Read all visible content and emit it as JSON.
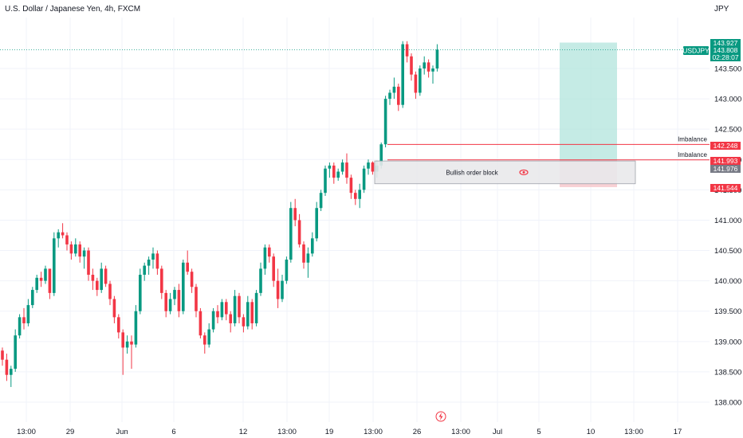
{
  "header": {
    "title": "U.S. Dollar / Japanese Yen, 4h, FXCM",
    "currency": "JPY"
  },
  "colors": {
    "up": "#089981",
    "down": "#f23645",
    "grid": "#f0f3fa",
    "target_zone": "#b2e4dc",
    "stop_zone": "#f6c6ca",
    "order_block": "#e9e9ec"
  },
  "chart_data": {
    "type": "candlestick",
    "title": "U.S. Dollar / Japanese Yen, 4h, FXCM",
    "ylim": [
      137.78,
      144.3
    ],
    "y_ticks": [
      138.0,
      138.5,
      139.0,
      139.5,
      140.0,
      140.5,
      141.0,
      141.5,
      142.0,
      142.5,
      143.0,
      143.5
    ],
    "y_tick_labels": [
      "138.000",
      "138.500",
      "139.000",
      "139.500",
      "140.000",
      "140.500",
      "141.000",
      "141.500",
      "142.000",
      "142.500",
      "143.000",
      "143.500"
    ],
    "x_tick_labels": [
      "13:00",
      "29",
      "Jun",
      "6",
      "12",
      "13:00",
      "19",
      "13:00",
      "26",
      "13:00",
      "Jul",
      "5",
      "10",
      "13:00",
      "17"
    ],
    "series": [
      {
        "name": "USDJPY",
        "last_price": 143.808,
        "ohlc": [
          [
            138.85,
            138.9,
            138.6,
            138.7
          ],
          [
            138.7,
            138.8,
            138.35,
            138.45
          ],
          [
            138.45,
            138.6,
            138.25,
            138.55
          ],
          [
            138.55,
            139.2,
            138.5,
            139.1
          ],
          [
            139.1,
            139.45,
            139.05,
            139.4
          ],
          [
            139.4,
            139.55,
            139.2,
            139.3
          ],
          [
            139.3,
            139.7,
            139.25,
            139.6
          ],
          [
            139.6,
            139.9,
            139.55,
            139.85
          ],
          [
            139.85,
            140.1,
            139.8,
            140.05
          ],
          [
            140.05,
            140.15,
            139.9,
            140.0
          ],
          [
            140.0,
            140.25,
            139.95,
            140.2
          ],
          [
            140.2,
            140.15,
            139.7,
            139.8
          ],
          [
            139.8,
            140.8,
            139.75,
            140.7
          ],
          [
            140.7,
            140.85,
            140.55,
            140.8
          ],
          [
            140.8,
            140.95,
            140.7,
            140.75
          ],
          [
            140.75,
            140.8,
            140.5,
            140.6
          ],
          [
            140.6,
            140.65,
            140.35,
            140.45
          ],
          [
            140.45,
            140.7,
            140.4,
            140.6
          ],
          [
            140.6,
            140.65,
            140.3,
            140.4
          ],
          [
            140.4,
            140.55,
            140.2,
            140.5
          ],
          [
            140.5,
            140.55,
            140.0,
            140.1
          ],
          [
            140.1,
            140.2,
            139.85,
            140.0
          ],
          [
            140.0,
            140.05,
            139.75,
            139.85
          ],
          [
            139.85,
            140.3,
            139.8,
            140.2
          ],
          [
            140.2,
            140.25,
            139.9,
            139.95
          ],
          [
            139.95,
            140.0,
            139.6,
            139.7
          ],
          [
            139.7,
            139.75,
            139.3,
            139.4
          ],
          [
            139.4,
            139.45,
            139.05,
            139.15
          ],
          [
            139.15,
            139.2,
            138.45,
            138.9
          ],
          [
            138.9,
            139.1,
            138.8,
            139.0
          ],
          [
            139.0,
            139.1,
            138.55,
            138.95
          ],
          [
            138.95,
            139.6,
            138.9,
            139.5
          ],
          [
            139.5,
            140.2,
            139.45,
            140.1
          ],
          [
            140.1,
            140.3,
            140.0,
            140.25
          ],
          [
            140.25,
            140.4,
            140.1,
            140.35
          ],
          [
            140.35,
            140.55,
            140.2,
            140.45
          ],
          [
            140.45,
            140.5,
            140.1,
            140.2
          ],
          [
            140.2,
            140.25,
            139.7,
            139.8
          ],
          [
            139.8,
            139.85,
            139.4,
            139.5
          ],
          [
            139.5,
            139.8,
            139.45,
            139.7
          ],
          [
            139.7,
            139.9,
            139.6,
            139.85
          ],
          [
            139.85,
            139.95,
            139.4,
            139.5
          ],
          [
            139.5,
            140.35,
            139.45,
            140.3
          ],
          [
            140.3,
            140.5,
            140.1,
            140.15
          ],
          [
            140.15,
            140.2,
            139.8,
            139.9
          ],
          [
            139.9,
            139.95,
            139.4,
            139.5
          ],
          [
            139.5,
            139.55,
            139.05,
            139.1
          ],
          [
            139.1,
            139.15,
            138.8,
            138.95
          ],
          [
            138.95,
            139.3,
            138.9,
            139.2
          ],
          [
            139.2,
            139.55,
            139.15,
            139.5
          ],
          [
            139.5,
            139.6,
            139.3,
            139.4
          ],
          [
            139.4,
            139.7,
            139.35,
            139.65
          ],
          [
            139.65,
            139.7,
            139.35,
            139.45
          ],
          [
            139.45,
            139.5,
            139.15,
            139.3
          ],
          [
            139.3,
            139.85,
            139.25,
            139.75
          ],
          [
            139.75,
            139.8,
            139.3,
            139.4
          ],
          [
            139.4,
            139.45,
            139.15,
            139.25
          ],
          [
            139.25,
            139.75,
            139.2,
            139.65
          ],
          [
            139.65,
            139.7,
            139.2,
            139.3
          ],
          [
            139.3,
            139.85,
            139.25,
            139.8
          ],
          [
            139.8,
            140.3,
            139.75,
            140.2
          ],
          [
            140.2,
            140.6,
            140.1,
            140.55
          ],
          [
            140.55,
            140.6,
            140.3,
            140.4
          ],
          [
            140.4,
            140.45,
            139.9,
            140.0
          ],
          [
            140.0,
            140.2,
            139.55,
            139.7
          ],
          [
            139.7,
            140.1,
            139.65,
            140.0
          ],
          [
            140.0,
            140.4,
            139.95,
            140.35
          ],
          [
            140.35,
            141.3,
            140.3,
            141.2
          ],
          [
            141.2,
            141.35,
            140.9,
            141.0
          ],
          [
            141.0,
            141.1,
            140.55,
            140.6
          ],
          [
            140.6,
            140.65,
            140.2,
            140.3
          ],
          [
            140.3,
            140.55,
            140.05,
            140.45
          ],
          [
            140.45,
            140.8,
            140.4,
            140.7
          ],
          [
            140.7,
            141.3,
            140.65,
            141.2
          ],
          [
            141.2,
            141.5,
            141.15,
            141.45
          ],
          [
            141.45,
            141.9,
            141.4,
            141.85
          ],
          [
            141.85,
            141.95,
            141.7,
            141.9
          ],
          [
            141.9,
            141.95,
            141.6,
            141.7
          ],
          [
            141.7,
            141.85,
            141.65,
            141.8
          ],
          [
            141.8,
            142.0,
            141.75,
            141.95
          ],
          [
            141.95,
            142.1,
            141.6,
            141.7
          ],
          [
            141.7,
            141.75,
            141.35,
            141.45
          ],
          [
            141.45,
            141.5,
            141.25,
            141.35
          ],
          [
            141.35,
            141.6,
            141.2,
            141.5
          ],
          [
            141.5,
            141.9,
            141.45,
            141.85
          ],
          [
            141.85,
            142.0,
            141.75,
            141.95
          ],
          [
            141.95,
            141.97,
            141.75,
            141.8
          ],
          [
            141.8,
            141.98,
            141.7,
            141.9
          ],
          [
            141.9,
            142.28,
            141.85,
            142.25
          ],
          [
            142.25,
            143.05,
            142.2,
            143.0
          ],
          [
            143.0,
            143.15,
            142.9,
            143.1
          ],
          [
            143.1,
            143.35,
            143.0,
            143.2
          ],
          [
            143.2,
            143.25,
            142.8,
            142.9
          ],
          [
            142.9,
            143.95,
            142.85,
            143.9
          ],
          [
            143.9,
            143.95,
            143.6,
            143.7
          ],
          [
            143.7,
            143.75,
            143.3,
            143.4
          ],
          [
            143.4,
            143.45,
            143.0,
            143.1
          ],
          [
            143.1,
            143.55,
            143.05,
            143.5
          ],
          [
            143.5,
            143.7,
            143.4,
            143.6
          ],
          [
            143.6,
            143.65,
            143.35,
            143.45
          ],
          [
            143.45,
            143.55,
            143.25,
            143.5
          ],
          [
            143.5,
            143.9,
            143.45,
            143.81
          ]
        ]
      }
    ],
    "annotations": [
      {
        "text": "Imbalance",
        "price": 142.248
      },
      {
        "text": "Imbalance",
        "price": 141.993
      },
      {
        "text": "Bullish order block",
        "top": 141.976,
        "bottom": 141.6
      }
    ],
    "position": {
      "target": 143.927,
      "entry": 141.993,
      "stop": 141.544
    },
    "price_labels": [
      {
        "text": "143.927",
        "price": 143.927,
        "color": "#089981"
      },
      {
        "text": "143.808",
        "price": 143.808,
        "color": "#089981"
      },
      {
        "text": "02:28:07",
        "price": 143.808,
        "color": "#089981"
      },
      {
        "text": "142.248",
        "price": 142.248,
        "color": "#f23645"
      },
      {
        "text": "141.993",
        "price": 141.993,
        "color": "#f23645"
      },
      {
        "text": "141.976",
        "price": 141.976,
        "color": "#787b86"
      },
      {
        "text": "141.544",
        "price": 141.544,
        "color": "#f23645"
      }
    ],
    "symbol_tag": "USDJPY"
  }
}
